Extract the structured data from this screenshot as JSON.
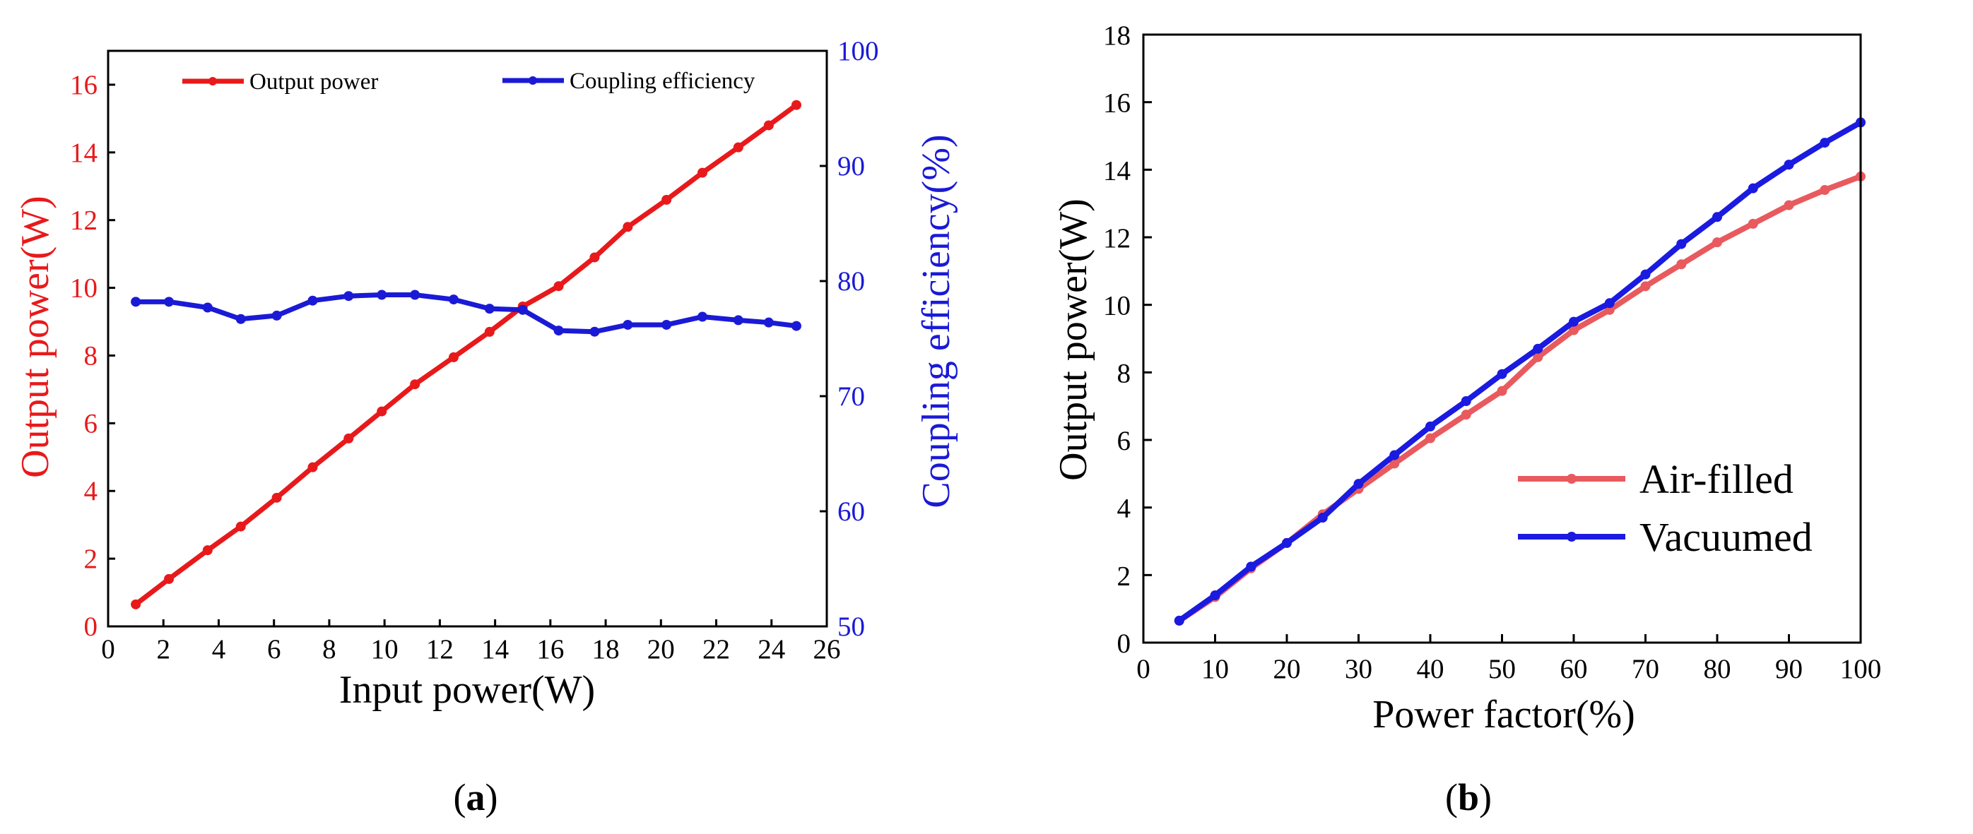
{
  "chart_data": [
    {
      "type": "line",
      "panel": "a",
      "caption_prefix": "(",
      "caption_letter": "a",
      "caption_suffix": ")",
      "xlabel": "Input power(W)",
      "ylabel_left": "Output power(W)",
      "ylabel_right": "Coupling efficiency(%)",
      "xlim": [
        0,
        26
      ],
      "ylim_left": [
        0,
        17
      ],
      "ylim_right": [
        50,
        100
      ],
      "xticks": [
        0,
        2,
        4,
        6,
        8,
        10,
        12,
        14,
        16,
        18,
        20,
        22,
        24,
        26
      ],
      "yticks_left": [
        0,
        2,
        4,
        6,
        8,
        10,
        12,
        14,
        16
      ],
      "yticks_right": [
        50,
        60,
        70,
        80,
        90,
        100
      ],
      "legend_position": "top",
      "grid": false,
      "x": [
        1.0,
        2.2,
        3.6,
        4.8,
        6.1,
        7.4,
        8.7,
        9.9,
        11.1,
        12.5,
        13.8,
        15.0,
        16.3,
        17.6,
        18.8,
        20.2,
        21.5,
        22.8,
        23.9,
        24.9
      ],
      "series": [
        {
          "name": "Output power",
          "axis": "left",
          "color": "#e8191b",
          "values": [
            0.65,
            1.4,
            2.25,
            2.95,
            3.8,
            4.7,
            5.55,
            6.35,
            7.15,
            7.95,
            8.7,
            9.45,
            10.05,
            10.9,
            11.8,
            12.6,
            13.4,
            14.15,
            14.8,
            15.4
          ]
        },
        {
          "name": "Coupling efficiency",
          "axis": "right",
          "color": "#1a1ad6",
          "values": [
            78.2,
            78.2,
            77.7,
            76.7,
            77.0,
            78.3,
            78.7,
            78.8,
            78.8,
            78.4,
            77.6,
            77.5,
            75.7,
            75.6,
            76.2,
            76.2,
            76.9,
            76.6,
            76.4,
            76.1
          ]
        }
      ]
    },
    {
      "type": "line",
      "panel": "b",
      "caption_prefix": "(",
      "caption_letter": "b",
      "caption_suffix": ")",
      "xlabel": "Power factor(%)",
      "ylabel": "Output power(W)",
      "xlim": [
        0,
        100
      ],
      "ylim": [
        0,
        18
      ],
      "xticks": [
        0,
        10,
        20,
        30,
        40,
        50,
        60,
        70,
        80,
        90,
        100
      ],
      "yticks": [
        0,
        2,
        4,
        6,
        8,
        10,
        12,
        14,
        16,
        18
      ],
      "legend_position": "bottom-right",
      "grid": false,
      "x": [
        5,
        10,
        15,
        20,
        25,
        30,
        35,
        40,
        45,
        50,
        55,
        60,
        65,
        70,
        75,
        80,
        85,
        90,
        95,
        100
      ],
      "series": [
        {
          "name": "Air-filled",
          "color": "#e85a5e",
          "values": [
            0.65,
            1.35,
            2.2,
            2.95,
            3.8,
            4.55,
            5.3,
            6.05,
            6.75,
            7.45,
            8.45,
            9.25,
            9.85,
            10.55,
            11.2,
            11.85,
            12.4,
            12.95,
            13.4,
            13.8
          ]
        },
        {
          "name": "Vacuumed",
          "color": "#1a1ae0",
          "values": [
            0.65,
            1.4,
            2.25,
            2.95,
            3.7,
            4.7,
            5.55,
            6.4,
            7.15,
            7.95,
            8.7,
            9.5,
            10.05,
            10.9,
            11.8,
            12.6,
            13.45,
            14.15,
            14.8,
            15.4
          ]
        }
      ]
    }
  ]
}
